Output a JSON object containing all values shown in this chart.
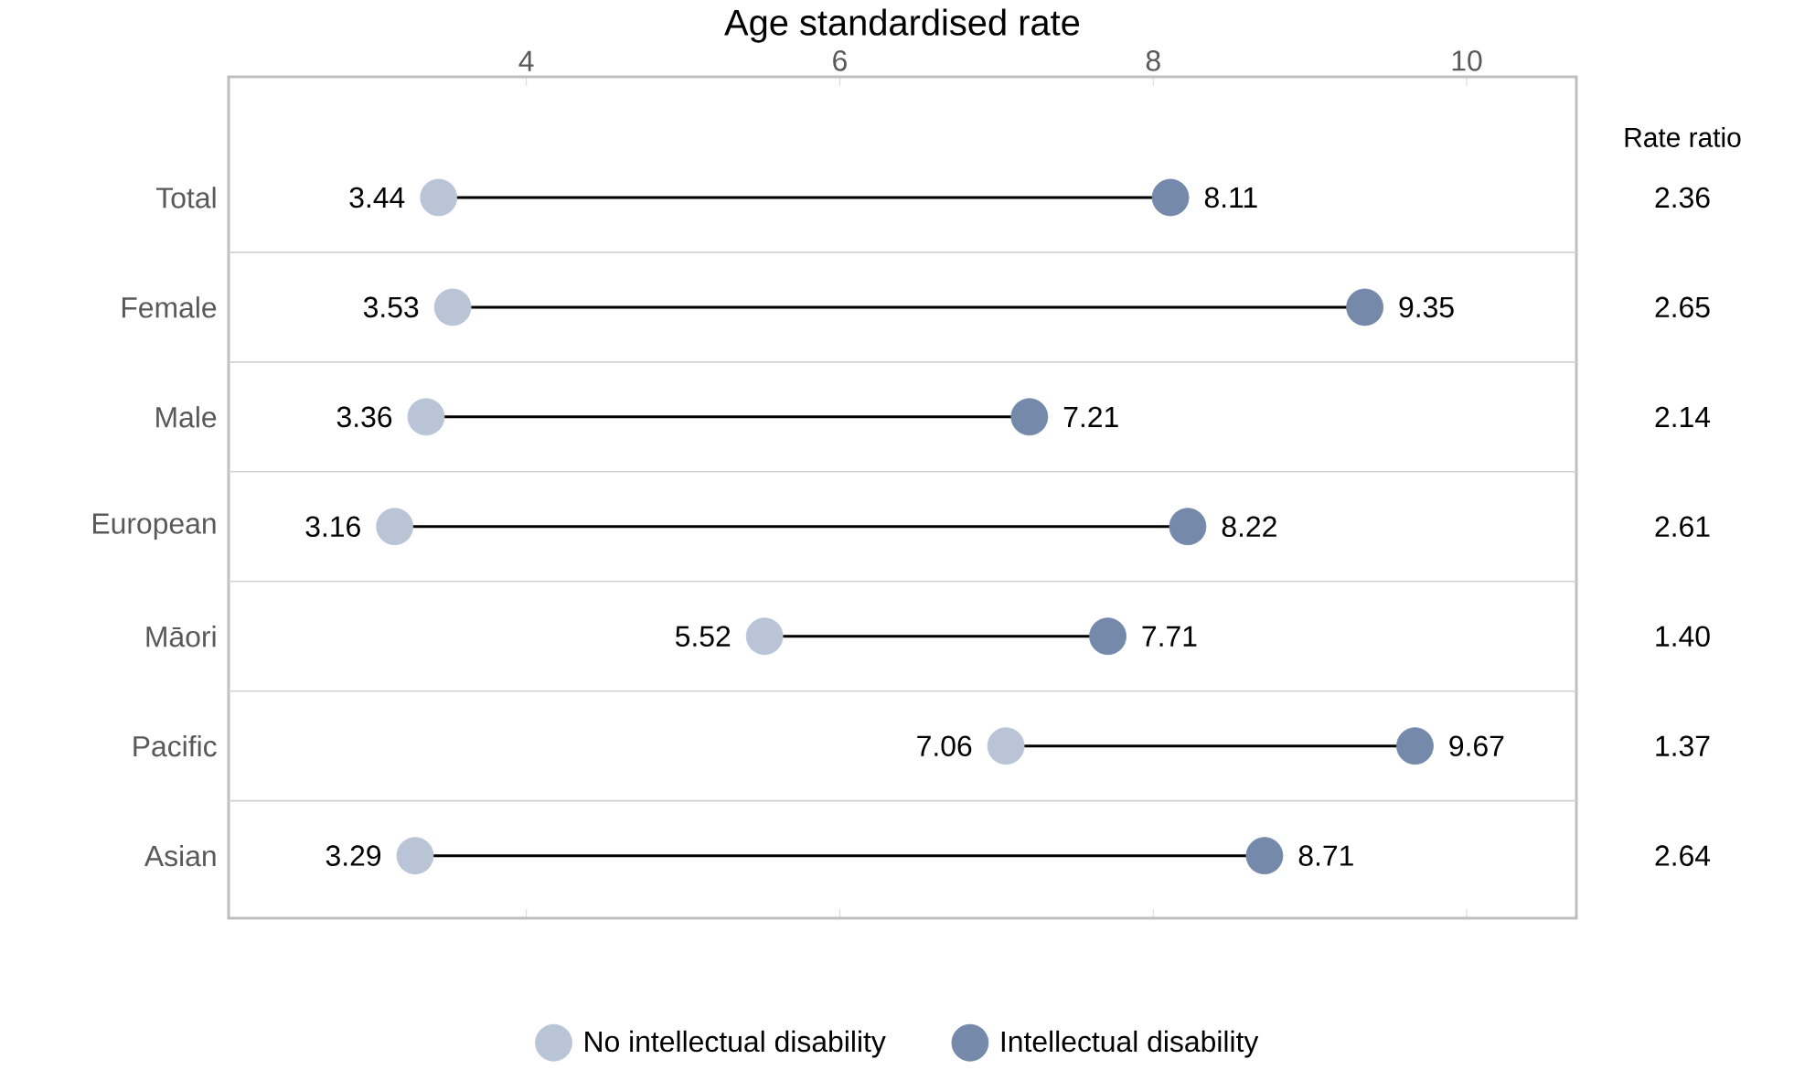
{
  "chart_data": {
    "type": "scatter",
    "orientation": "horizontal",
    "xlabel": "Age standardised rate",
    "categories": [
      "Total",
      "Female",
      "Male",
      "European",
      "Māori",
      "Pacific",
      "Asian"
    ],
    "series": [
      {
        "name": "No intellectual disability",
        "color": "#b9c5d7",
        "values": [
          3.44,
          3.53,
          3.36,
          3.16,
          5.52,
          7.06,
          3.29
        ]
      },
      {
        "name": "Intellectual disability",
        "color": "#7589ab",
        "values": [
          8.11,
          9.35,
          7.21,
          8.22,
          7.71,
          9.67,
          8.71
        ]
      }
    ],
    "xlim": [
      2.1,
      10.7
    ],
    "xticks": [
      4,
      6,
      8,
      10
    ],
    "data_labels": true,
    "legend": "bottom",
    "grid": false,
    "annotations": [
      "Rate ratio",
      "2.36",
      "2.65",
      "2.14",
      "2.61",
      "1.40",
      "1.37",
      "2.64"
    ]
  }
}
